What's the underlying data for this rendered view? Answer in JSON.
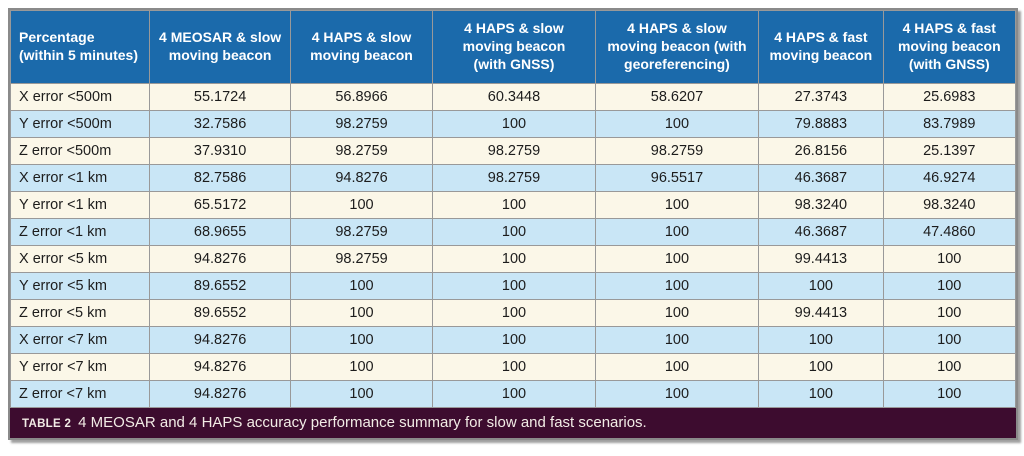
{
  "table": {
    "columns": [
      [
        "Percentage",
        "(within 5 minutes)"
      ],
      [
        "4 MEOSAR & slow",
        "moving beacon"
      ],
      [
        "4 HAPS & slow",
        "moving beacon"
      ],
      [
        "4 HAPS & slow",
        "moving beacon",
        "(with GNSS)"
      ],
      [
        "4 HAPS & slow",
        "moving beacon (with",
        "georeferencing)"
      ],
      [
        "4 HAPS & fast",
        "moving beacon"
      ],
      [
        "4 HAPS & fast",
        "moving beacon",
        "(with GNSS)"
      ]
    ],
    "rows": [
      {
        "label": "X error <500m",
        "values": [
          "55.1724",
          "56.8966",
          "60.3448",
          "58.6207",
          "27.3743",
          "25.6983"
        ]
      },
      {
        "label": "Y error <500m",
        "values": [
          "32.7586",
          "98.2759",
          "100",
          "100",
          "79.8883",
          "83.7989"
        ]
      },
      {
        "label": "Z error <500m",
        "values": [
          "37.9310",
          "98.2759",
          "98.2759",
          "98.2759",
          "26.8156",
          "25.1397"
        ]
      },
      {
        "label": "X error <1 km",
        "values": [
          "82.7586",
          "94.8276",
          "98.2759",
          "96.5517",
          "46.3687",
          "46.9274"
        ]
      },
      {
        "label": "Y error <1 km",
        "values": [
          "65.5172",
          "100",
          "100",
          "100",
          "98.3240",
          "98.3240"
        ]
      },
      {
        "label": "Z error <1 km",
        "values": [
          "68.9655",
          "98.2759",
          "100",
          "100",
          "46.3687",
          "47.4860"
        ]
      },
      {
        "label": "X error <5 km",
        "values": [
          "94.8276",
          "98.2759",
          "100",
          "100",
          "99.4413",
          "100"
        ]
      },
      {
        "label": "Y error <5 km",
        "values": [
          "89.6552",
          "100",
          "100",
          "100",
          "100",
          "100"
        ]
      },
      {
        "label": "Z error <5 km",
        "values": [
          "89.6552",
          "100",
          "100",
          "100",
          "99.4413",
          "100"
        ]
      },
      {
        "label": "X error <7 km",
        "values": [
          "94.8276",
          "100",
          "100",
          "100",
          "100",
          "100"
        ]
      },
      {
        "label": "Y error <7 km",
        "values": [
          "94.8276",
          "100",
          "100",
          "100",
          "100",
          "100"
        ]
      },
      {
        "label": "Z error <7 km",
        "values": [
          "94.8276",
          "100",
          "100",
          "100",
          "100",
          "100"
        ]
      }
    ],
    "caption_tag": "TABLE 2",
    "caption_text": "4 MEOSAR and 4 HAPS accuracy performance summary for slow and fast scenarios."
  },
  "colors": {
    "header_bg": "#1b6aab",
    "row_cream": "#fbf7e8",
    "row_blue": "#c9e6f6",
    "grid": "#999999",
    "caption_bg": "#3d0c2f"
  }
}
